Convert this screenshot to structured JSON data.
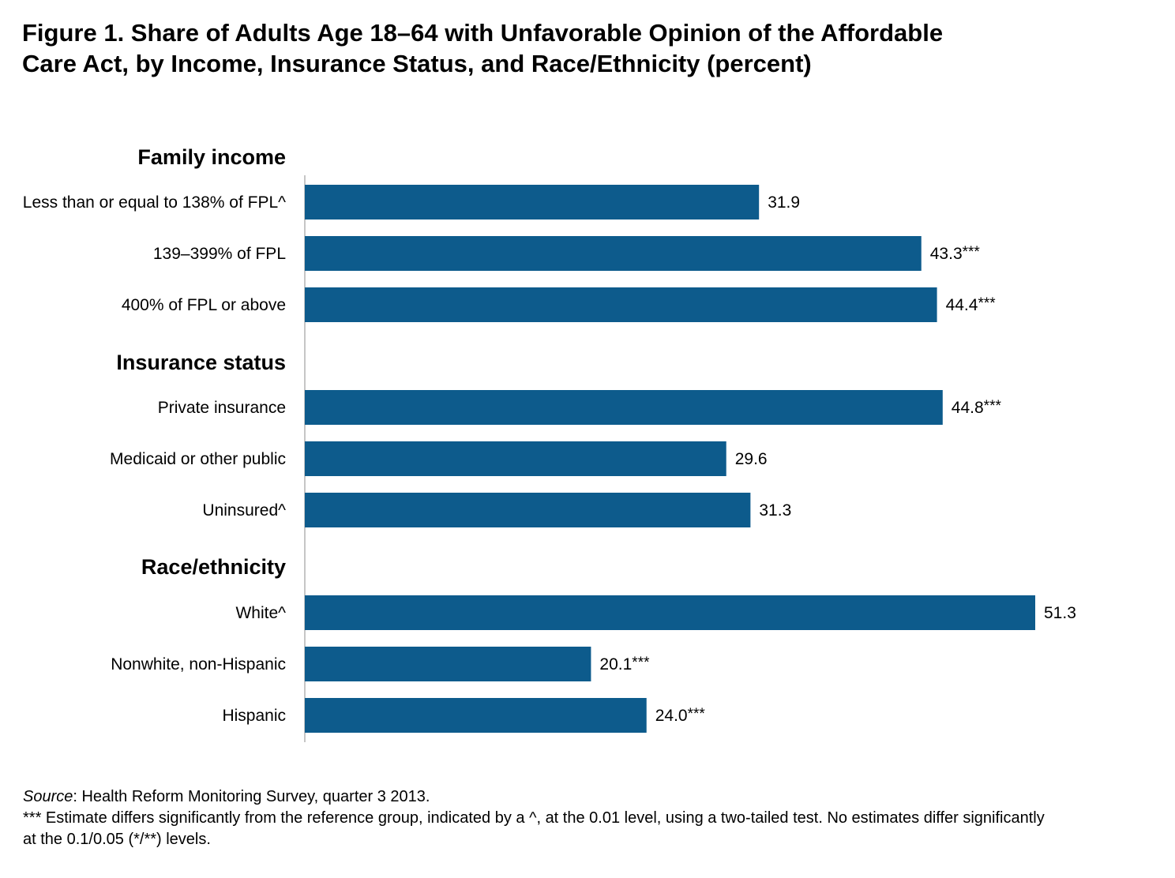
{
  "title_lines": [
    "Figure 1. Share of Adults Age 18–64 with Unfavorable Opinion of the Affordable",
    "Care Act, by Income, Insurance Status, and Race/Ethnicity  (percent)"
  ],
  "footnote": {
    "source_label": "Source",
    "source_text": ": Health Reform Monitoring Survey, quarter 3 2013.",
    "significance_note_line1": "*** Estimate differs significantly from the reference group, indicated by a ^, at the 0.01 level, using a two-tailed test. No estimates differ significantly",
    "significance_note_line2": "at the 0.1/0.05 (*/**) levels."
  },
  "chart_data": {
    "type": "bar",
    "orientation": "horizontal",
    "title": "Figure 1. Share of Adults Age 18–64 with Unfavorable Opinion of the Affordable Care Act, by Income, Insurance Status, and Race/Ethnicity  (percent)",
    "xlabel": "",
    "ylabel": "",
    "xlim": [
      0,
      51.3
    ],
    "grid": false,
    "legend": "none",
    "bar_color": "#0d5b8c",
    "groups": [
      {
        "name": "Family income",
        "bars": [
          {
            "label": "Less than or equal to 138% of FPL^",
            "value": 31.9,
            "display": "31.9",
            "sig": ""
          },
          {
            "label": "139–399% of FPL",
            "value": 43.3,
            "display": "43.3",
            "sig": "***"
          },
          {
            "label": "400% of FPL or above",
            "value": 44.4,
            "display": "44.4",
            "sig": "***"
          }
        ]
      },
      {
        "name": "Insurance status",
        "bars": [
          {
            "label": "Private insurance",
            "value": 44.8,
            "display": "44.8",
            "sig": "***"
          },
          {
            "label": "Medicaid or other public",
            "value": 29.6,
            "display": "29.6",
            "sig": ""
          },
          {
            "label": "Uninsured^",
            "value": 31.3,
            "display": "31.3",
            "sig": ""
          }
        ]
      },
      {
        "name": "Race/ethnicity",
        "bars": [
          {
            "label": "White^",
            "value": 51.3,
            "display": "51.3",
            "sig": ""
          },
          {
            "label": "Nonwhite, non-Hispanic",
            "value": 20.1,
            "display": "20.1",
            "sig": "***"
          },
          {
            "label": "Hispanic",
            "value": 24.0,
            "display": "24.0",
            "sig": "***"
          }
        ]
      }
    ]
  }
}
